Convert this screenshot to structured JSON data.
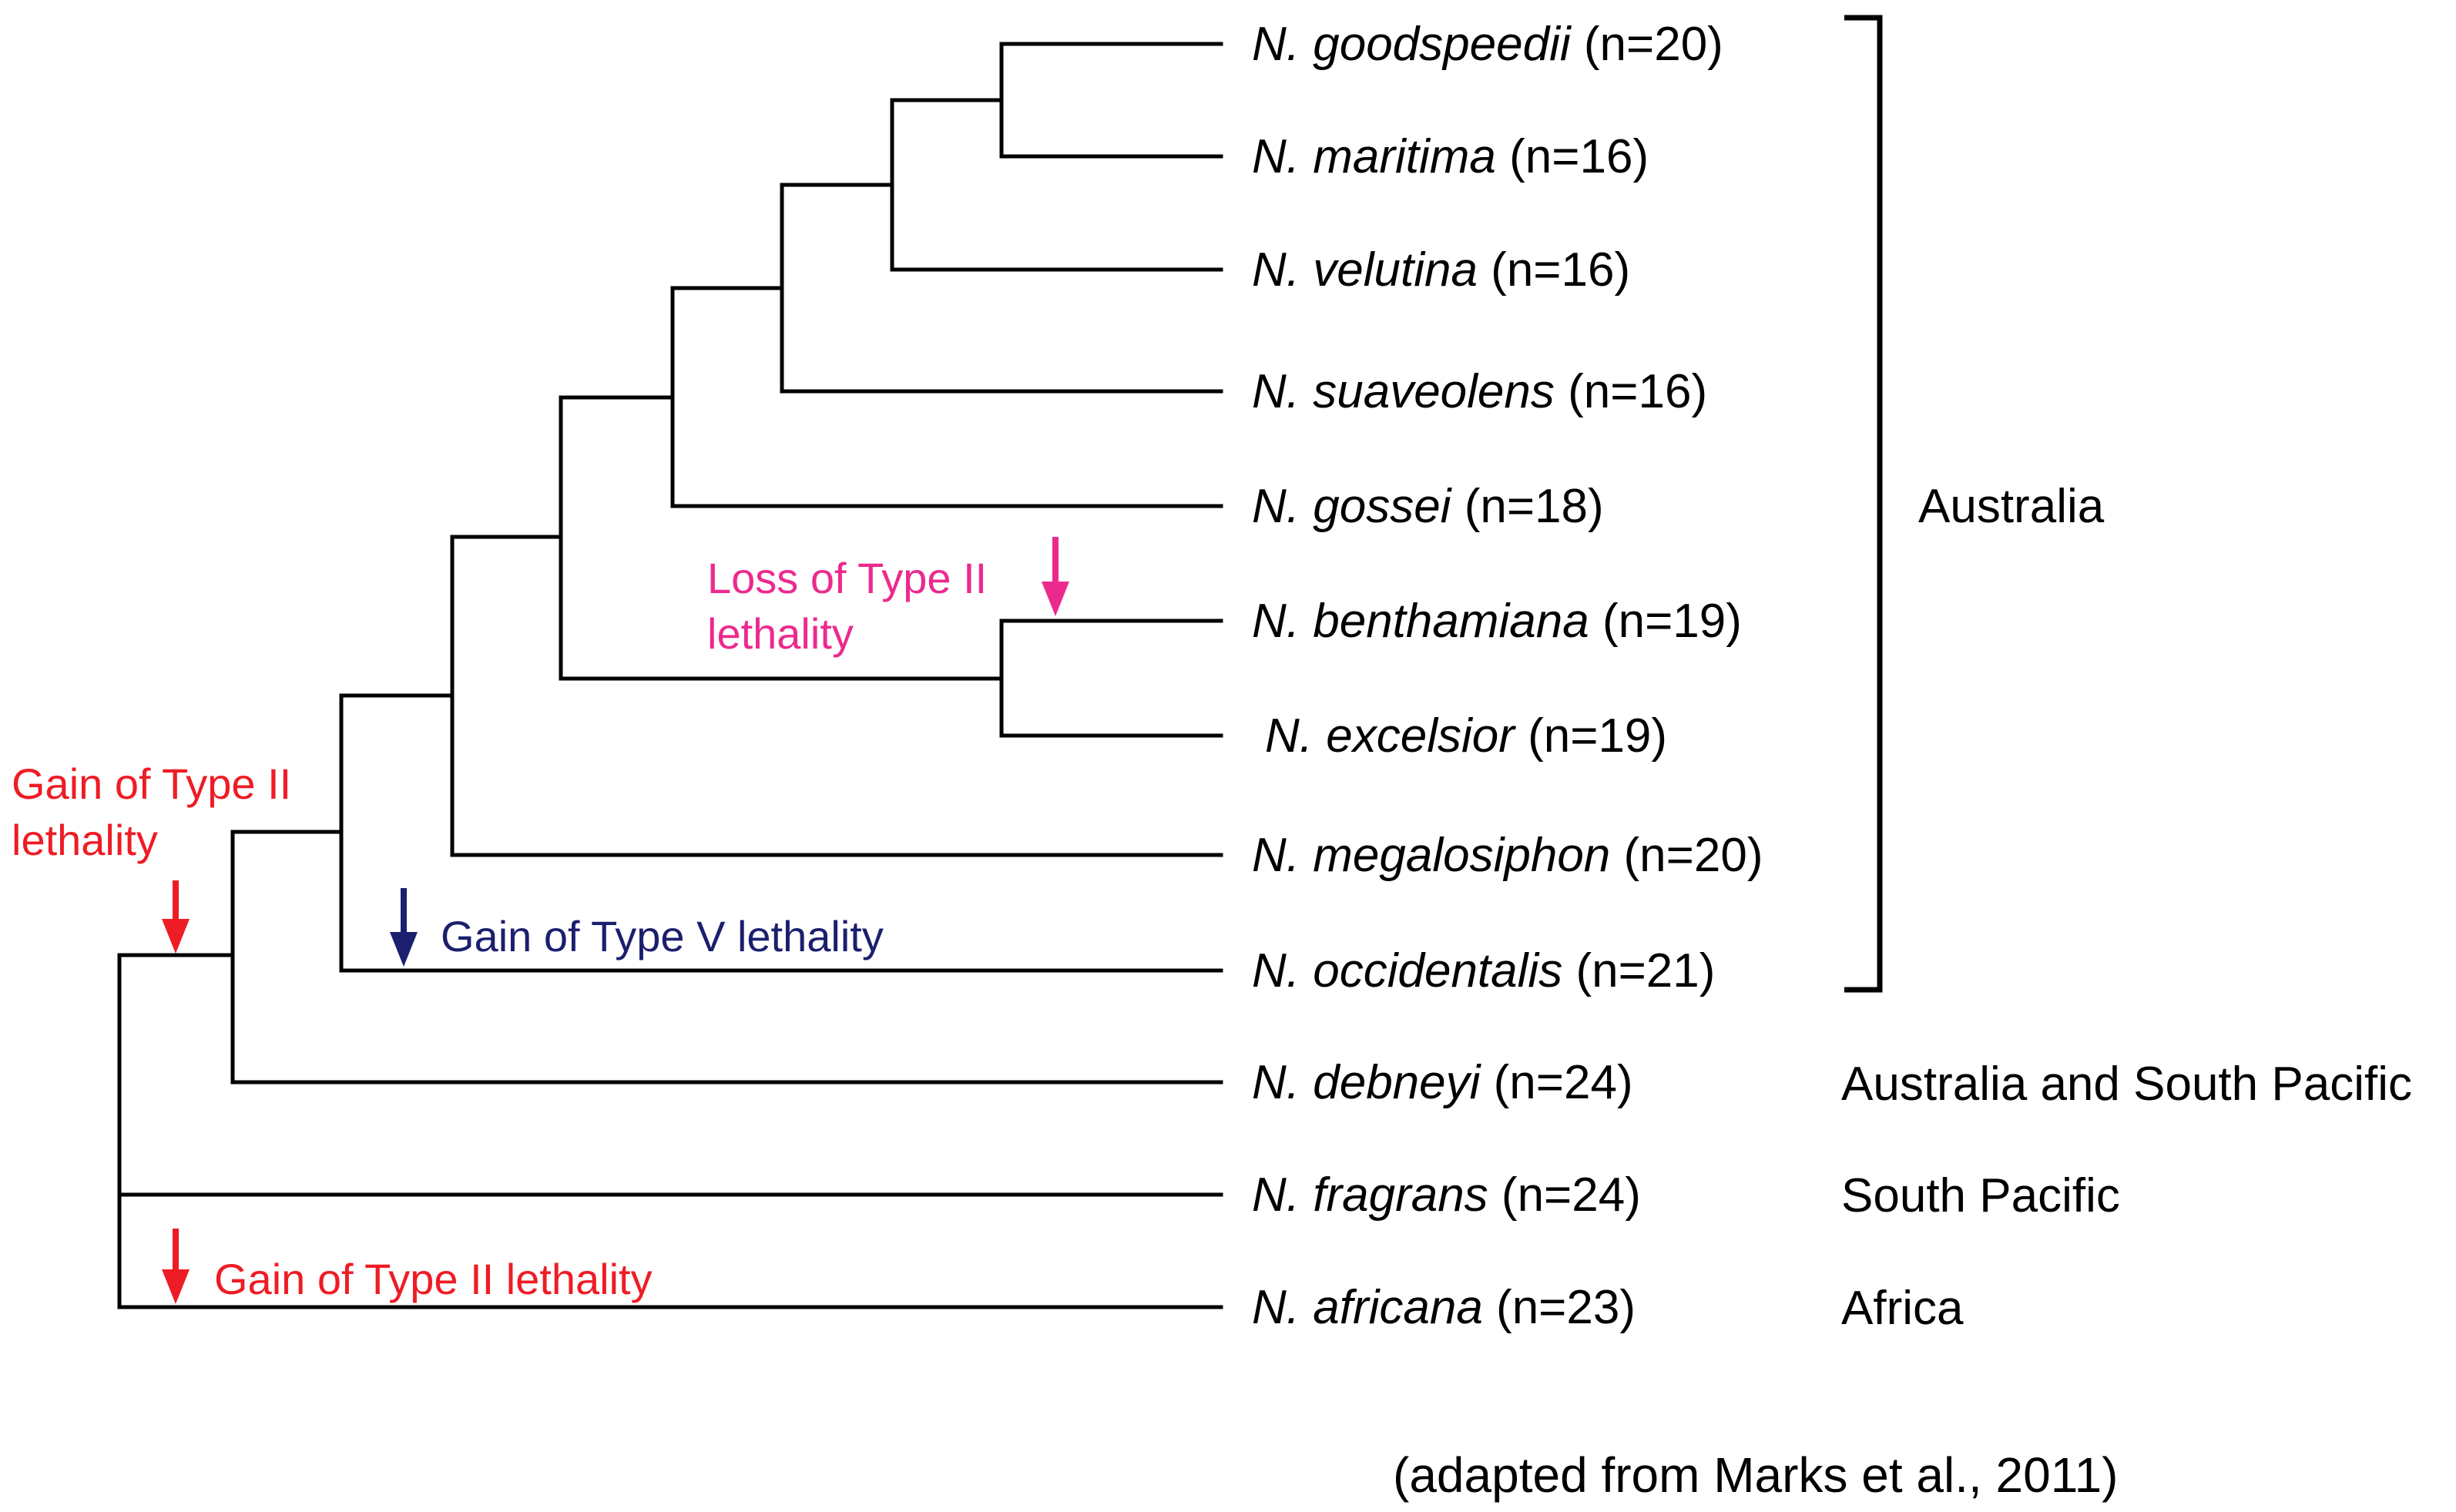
{
  "colors": {
    "branch": "#000000",
    "gain_type_ii": "#ee1c25",
    "loss_type_ii": "#ec2a8e",
    "gain_type_v": "#1b1f6e"
  },
  "taxa": [
    {
      "genus": "N.",
      "species": "goodspeedii",
      "count": "(n=20)"
    },
    {
      "genus": "N.",
      "species": "maritima",
      "count": "(n=16)"
    },
    {
      "genus": "N.",
      "species": "velutina",
      "count": "(n=16)"
    },
    {
      "genus": "N.",
      "species": "suaveolens",
      "count": "(n=16)"
    },
    {
      "genus": "N.",
      "species": "gossei",
      "count": "(n=18)"
    },
    {
      "genus": "N.",
      "species": "benthamiana",
      "count": "(n=19)"
    },
    {
      "genus": "N.",
      "species": "excelsior",
      "count": "(n=19)"
    },
    {
      "genus": "N.",
      "species": "megalosiphon",
      "count": "(n=20)"
    },
    {
      "genus": "N.",
      "species": "occidentalis",
      "count": "(n=21)"
    },
    {
      "genus": "N.",
      "species": "debneyi",
      "count": "(n=24)"
    },
    {
      "genus": "N.",
      "species": "fragrans",
      "count": "(n=24)"
    },
    {
      "genus": "N.",
      "species": "africana",
      "count": "(n=23)"
    }
  ],
  "regions": {
    "australia": "Australia",
    "australia_south_pacific": "Australia and South Pacific",
    "south_pacific": "South Pacific",
    "africa": "Africa"
  },
  "annotations": {
    "gain_type_ii_root": [
      "Gain of Type II",
      "lethality"
    ],
    "loss_type_ii": [
      "Loss of Type II",
      "lethality"
    ],
    "gain_type_v": "Gain of Type V lethality",
    "gain_type_ii_africana": "Gain of Type II lethality"
  },
  "source": "(adapted from Marks et al., 2011)"
}
